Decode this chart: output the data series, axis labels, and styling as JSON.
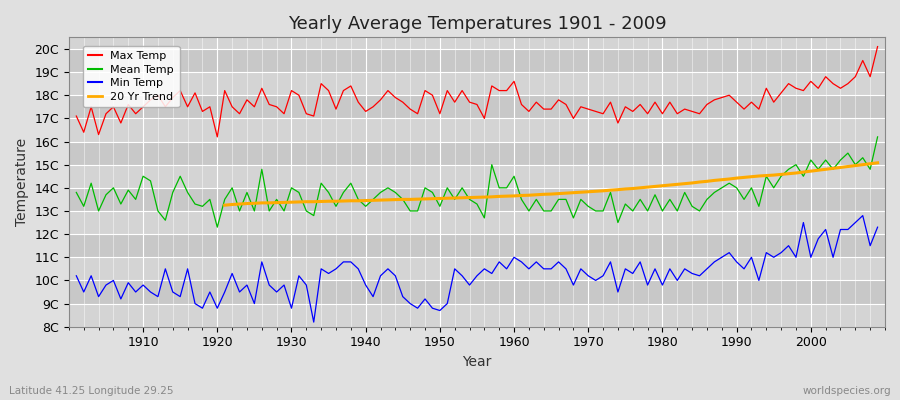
{
  "title": "Yearly Average Temperatures 1901 - 2009",
  "xlabel": "Year",
  "ylabel": "Temperature",
  "bottom_left": "Latitude 41.25 Longitude 29.25",
  "bottom_right": "worldspecies.org",
  "years": [
    1901,
    1902,
    1903,
    1904,
    1905,
    1906,
    1907,
    1908,
    1909,
    1910,
    1911,
    1912,
    1913,
    1914,
    1915,
    1916,
    1917,
    1918,
    1919,
    1920,
    1921,
    1922,
    1923,
    1924,
    1925,
    1926,
    1927,
    1928,
    1929,
    1930,
    1931,
    1932,
    1933,
    1934,
    1935,
    1936,
    1937,
    1938,
    1939,
    1940,
    1941,
    1942,
    1943,
    1944,
    1945,
    1946,
    1947,
    1948,
    1949,
    1950,
    1951,
    1952,
    1953,
    1954,
    1955,
    1956,
    1957,
    1958,
    1959,
    1960,
    1961,
    1962,
    1963,
    1964,
    1965,
    1966,
    1967,
    1968,
    1969,
    1970,
    1971,
    1972,
    1973,
    1974,
    1975,
    1976,
    1977,
    1978,
    1979,
    1980,
    1981,
    1982,
    1983,
    1984,
    1985,
    1986,
    1987,
    1988,
    1989,
    1990,
    1991,
    1992,
    1993,
    1994,
    1995,
    1996,
    1997,
    1998,
    1999,
    2000,
    2001,
    2002,
    2003,
    2004,
    2005,
    2006,
    2007,
    2008,
    2009
  ],
  "max_temp": [
    17.1,
    16.4,
    17.5,
    16.3,
    17.2,
    17.5,
    16.8,
    17.6,
    17.2,
    17.5,
    17.8,
    18.0,
    17.5,
    17.9,
    18.2,
    17.5,
    18.1,
    17.3,
    17.5,
    16.2,
    18.2,
    17.5,
    17.2,
    17.8,
    17.5,
    18.3,
    17.6,
    17.5,
    17.2,
    18.2,
    18.0,
    17.2,
    17.1,
    18.5,
    18.2,
    17.4,
    18.2,
    18.4,
    17.7,
    17.3,
    17.5,
    17.8,
    18.2,
    17.9,
    17.7,
    17.4,
    17.2,
    18.2,
    18.0,
    17.2,
    18.2,
    17.7,
    18.2,
    17.7,
    17.6,
    17.0,
    18.4,
    18.2,
    18.2,
    18.6,
    17.6,
    17.3,
    17.7,
    17.4,
    17.4,
    17.8,
    17.6,
    17.0,
    17.5,
    17.4,
    17.3,
    17.2,
    17.7,
    16.8,
    17.5,
    17.3,
    17.6,
    17.2,
    17.7,
    17.2,
    17.7,
    17.2,
    17.4,
    17.3,
    17.2,
    17.6,
    17.8,
    17.9,
    18.0,
    17.7,
    17.4,
    17.7,
    17.4,
    18.3,
    17.7,
    18.1,
    18.5,
    18.3,
    18.2,
    18.6,
    18.3,
    18.8,
    18.5,
    18.3,
    18.5,
    18.8,
    19.5,
    18.8,
    20.1
  ],
  "mean_temp": [
    13.8,
    13.2,
    14.2,
    13.0,
    13.7,
    14.0,
    13.3,
    13.9,
    13.5,
    14.5,
    14.3,
    13.0,
    12.6,
    13.8,
    14.5,
    13.8,
    13.3,
    13.2,
    13.5,
    12.3,
    13.5,
    14.0,
    13.0,
    13.8,
    13.0,
    14.8,
    13.0,
    13.5,
    13.0,
    14.0,
    13.8,
    13.0,
    12.8,
    14.2,
    13.8,
    13.2,
    13.8,
    14.2,
    13.5,
    13.2,
    13.5,
    13.8,
    14.0,
    13.8,
    13.5,
    13.0,
    13.0,
    14.0,
    13.8,
    13.2,
    14.0,
    13.5,
    14.0,
    13.5,
    13.3,
    12.7,
    15.0,
    14.0,
    14.0,
    14.5,
    13.5,
    13.0,
    13.5,
    13.0,
    13.0,
    13.5,
    13.5,
    12.7,
    13.5,
    13.2,
    13.0,
    13.0,
    13.8,
    12.5,
    13.3,
    13.0,
    13.5,
    13.0,
    13.7,
    13.0,
    13.5,
    13.0,
    13.8,
    13.2,
    13.0,
    13.5,
    13.8,
    14.0,
    14.2,
    14.0,
    13.5,
    14.0,
    13.2,
    14.5,
    14.0,
    14.5,
    14.8,
    15.0,
    14.5,
    15.2,
    14.8,
    15.2,
    14.8,
    15.2,
    15.5,
    15.0,
    15.3,
    14.8,
    16.2
  ],
  "min_temp": [
    10.2,
    9.5,
    10.2,
    9.3,
    9.8,
    10.0,
    9.2,
    9.9,
    9.5,
    9.8,
    9.5,
    9.3,
    10.5,
    9.5,
    9.3,
    10.5,
    9.0,
    8.8,
    9.5,
    8.8,
    9.5,
    10.3,
    9.5,
    9.8,
    9.0,
    10.8,
    9.8,
    9.5,
    9.8,
    8.8,
    10.2,
    9.8,
    8.2,
    10.5,
    10.3,
    10.5,
    10.8,
    10.8,
    10.5,
    9.8,
    9.3,
    10.2,
    10.5,
    10.2,
    9.3,
    9.0,
    8.8,
    9.2,
    8.8,
    8.7,
    9.0,
    10.5,
    10.2,
    9.8,
    10.2,
    10.5,
    10.3,
    10.8,
    10.5,
    11.0,
    10.8,
    10.5,
    10.8,
    10.5,
    10.5,
    10.8,
    10.5,
    9.8,
    10.5,
    10.2,
    10.0,
    10.2,
    10.8,
    9.5,
    10.5,
    10.3,
    10.8,
    9.8,
    10.5,
    9.8,
    10.5,
    10.0,
    10.5,
    10.3,
    10.2,
    10.5,
    10.8,
    11.0,
    11.2,
    10.8,
    10.5,
    11.0,
    10.0,
    11.2,
    11.0,
    11.2,
    11.5,
    11.0,
    12.5,
    11.0,
    11.8,
    12.2,
    11.0,
    12.2,
    12.2,
    12.5,
    12.8,
    11.5,
    12.3
  ],
  "trend_start_year": 1921,
  "trend_years": [
    1921,
    1922,
    1923,
    1924,
    1925,
    1926,
    1927,
    1928,
    1929,
    1930,
    1931,
    1932,
    1933,
    1934,
    1935,
    1936,
    1937,
    1938,
    1939,
    1940,
    1941,
    1942,
    1943,
    1944,
    1945,
    1946,
    1947,
    1948,
    1949,
    1950,
    1951,
    1952,
    1953,
    1954,
    1955,
    1956,
    1957,
    1958,
    1959,
    1960,
    1961,
    1962,
    1963,
    1964,
    1965,
    1966,
    1967,
    1968,
    1969,
    1970,
    1971,
    1972,
    1973,
    1974,
    1975,
    1976,
    1977,
    1978,
    1979,
    1980,
    1981,
    1982,
    1983,
    1984,
    1985,
    1986,
    1987,
    1988,
    1989,
    1990,
    1991,
    1992,
    1993,
    1994,
    1995,
    1996,
    1997,
    1998,
    1999,
    2000,
    2001,
    2002,
    2003,
    2004,
    2005,
    2006,
    2007,
    2008,
    2009
  ],
  "trend_values": [
    13.25,
    13.28,
    13.3,
    13.32,
    13.33,
    13.35,
    13.35,
    13.36,
    13.37,
    13.38,
    13.39,
    13.4,
    13.4,
    13.41,
    13.42,
    13.42,
    13.43,
    13.44,
    13.44,
    13.45,
    13.46,
    13.47,
    13.48,
    13.49,
    13.5,
    13.5,
    13.51,
    13.52,
    13.53,
    13.54,
    13.55,
    13.56,
    13.57,
    13.58,
    13.59,
    13.6,
    13.61,
    13.63,
    13.64,
    13.65,
    13.67,
    13.68,
    13.7,
    13.72,
    13.73,
    13.75,
    13.77,
    13.79,
    13.81,
    13.83,
    13.85,
    13.87,
    13.9,
    13.92,
    13.95,
    13.97,
    14.0,
    14.03,
    14.06,
    14.09,
    14.12,
    14.15,
    14.18,
    14.21,
    14.25,
    14.28,
    14.32,
    14.35,
    14.38,
    14.42,
    14.45,
    14.48,
    14.51,
    14.53,
    14.55,
    14.58,
    14.61,
    14.64,
    14.68,
    14.72,
    14.76,
    14.8,
    14.84,
    14.88,
    14.92,
    14.96,
    15.0,
    15.04,
    15.08
  ],
  "max_color": "#ff0000",
  "mean_color": "#00bb00",
  "min_color": "#0000ff",
  "trend_color": "#ffaa00",
  "bg_color": "#e0e0e0",
  "plot_bg_color_light": "#d4d4d4",
  "plot_bg_color_dark": "#c8c8c8",
  "grid_color": "#ffffff",
  "ylim_bottom": 8,
  "ylim_top": 20.5,
  "yticks": [
    8,
    9,
    10,
    11,
    12,
    13,
    14,
    15,
    16,
    17,
    18,
    19,
    20
  ],
  "ytick_labels": [
    "8C",
    "9C",
    "10C",
    "11C",
    "12C",
    "13C",
    "14C",
    "15C",
    "16C",
    "17C",
    "18C",
    "19C",
    "20C"
  ],
  "xlim_left": 1900,
  "xlim_right": 2010,
  "title_fontsize": 13,
  "axis_label_fontsize": 10,
  "tick_fontsize": 9,
  "legend_fontsize": 8
}
